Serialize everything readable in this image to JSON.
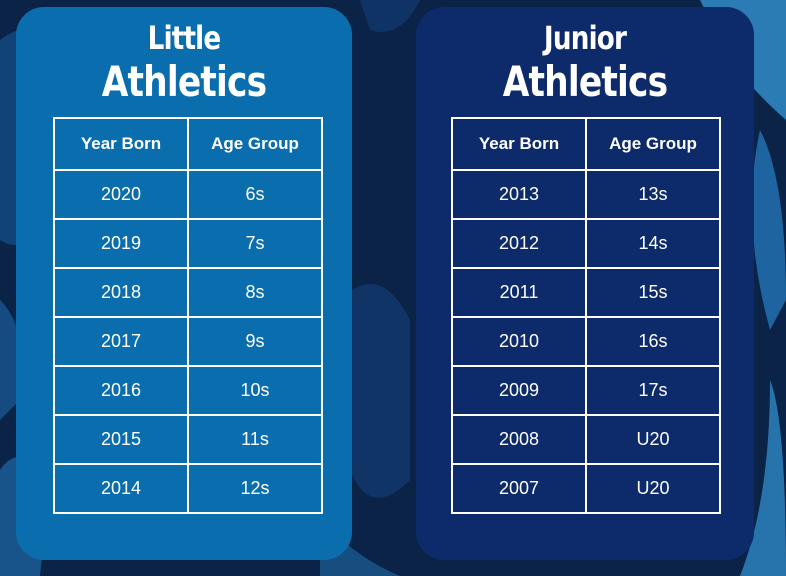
{
  "colors": {
    "background": "#0b2347",
    "little_card": "#0a6eae",
    "junior_card": "#0d2a6b",
    "text": "#ffffff"
  },
  "little": {
    "title_line1": "Little",
    "title_line2": "Athletics",
    "headers": [
      "Year Born",
      "Age Group"
    ],
    "rows": [
      [
        "2020",
        "6s"
      ],
      [
        "2019",
        "7s"
      ],
      [
        "2018",
        "8s"
      ],
      [
        "2017",
        "9s"
      ],
      [
        "2016",
        "10s"
      ],
      [
        "2015",
        "11s"
      ],
      [
        "2014",
        "12s"
      ]
    ]
  },
  "junior": {
    "title_line1": "Junior",
    "title_line2": "Athletics",
    "headers": [
      "Year Born",
      "Age Group"
    ],
    "rows": [
      [
        "2013",
        "13s"
      ],
      [
        "2012",
        "14s"
      ],
      [
        "2011",
        "15s"
      ],
      [
        "2010",
        "16s"
      ],
      [
        "2009",
        "17s"
      ],
      [
        "2008",
        "U20"
      ],
      [
        "2007",
        "U20"
      ]
    ]
  }
}
